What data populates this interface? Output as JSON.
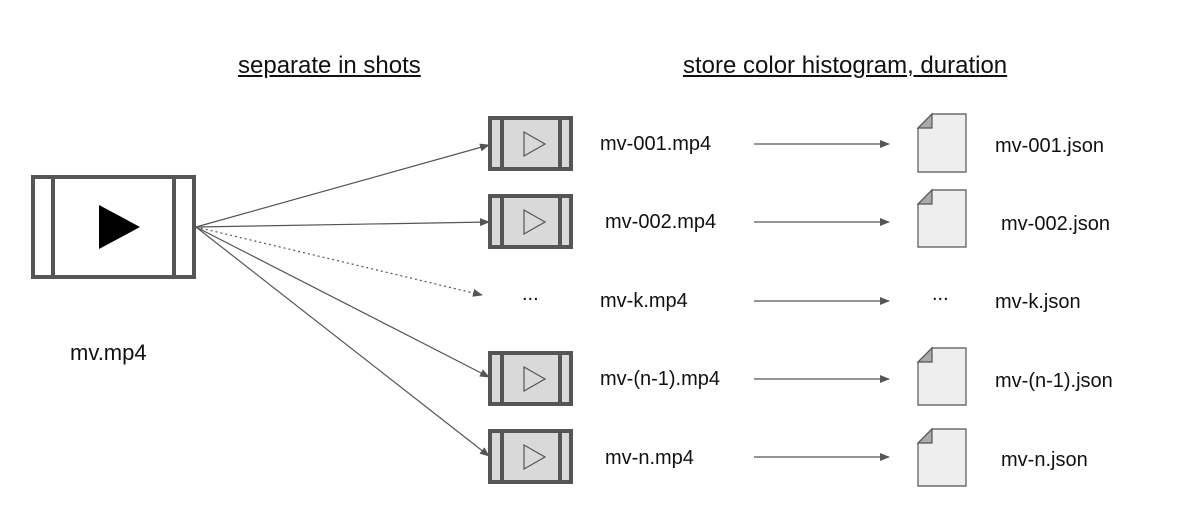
{
  "headers": {
    "split": "separate in shots",
    "store": "store color histogram, duration"
  },
  "source": {
    "label": "mv.mp4",
    "icon": "video-play-icon"
  },
  "shots": [
    {
      "video": "mv-001.mp4",
      "json": "mv-001.json",
      "kind": "clip"
    },
    {
      "video": "mv-002.mp4",
      "json": "mv-002.json",
      "kind": "clip"
    },
    {
      "video": "mv-k.mp4",
      "json": "mv-k.json",
      "kind": "ellipsis",
      "placeholder": "..."
    },
    {
      "video": "mv-(n-1).mp4",
      "json": "mv-(n-1).json",
      "kind": "clip"
    },
    {
      "video": "mv-n.mp4",
      "json": "mv-n.json",
      "kind": "clip"
    }
  ],
  "colors": {
    "stroke": "#555555",
    "fill": "#d9d9d9",
    "doc_fill": "#eeeeee",
    "text": "#111111"
  }
}
